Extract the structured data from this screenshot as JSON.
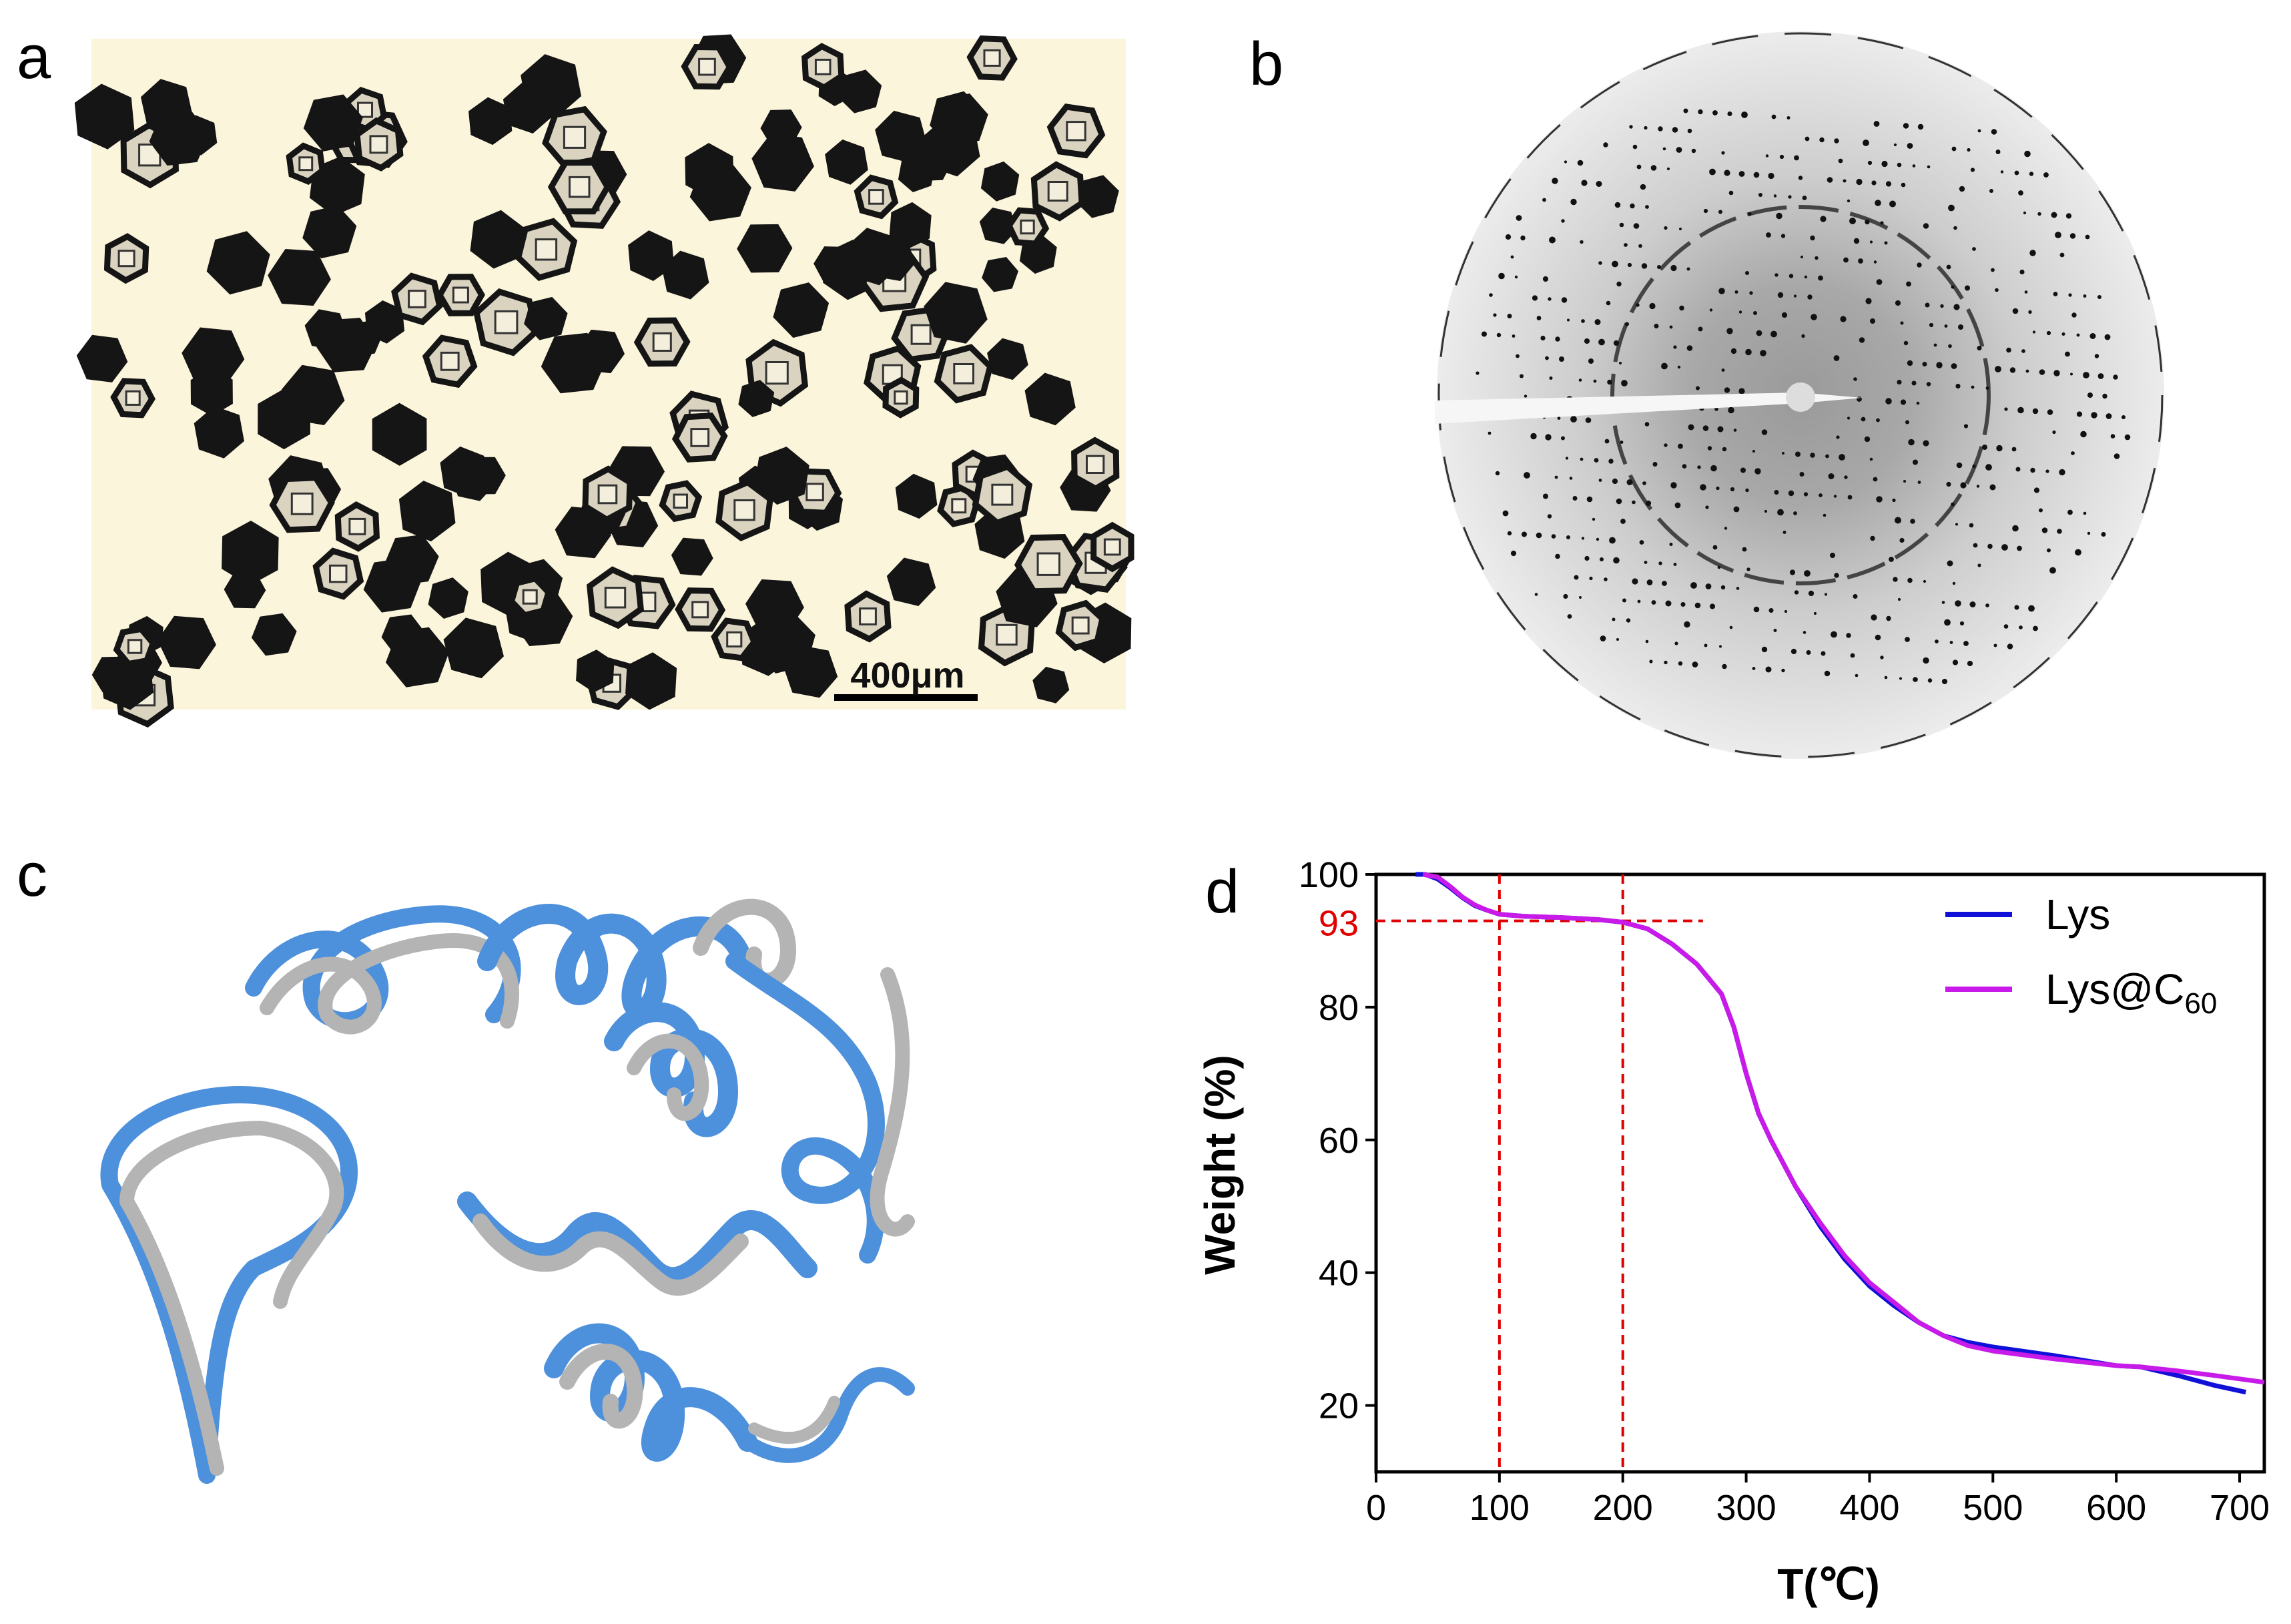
{
  "panels": {
    "a": {
      "letter": "a",
      "scale_bar_label": "400μm",
      "background_color": "#fbf5dc",
      "crystal_color": "#151515"
    },
    "b": {
      "letter": "b",
      "background_color": "#e6e6e6",
      "spot_color": "#111111"
    },
    "c": {
      "letter": "c",
      "ribbon_colors": [
        "#4d90dc",
        "#b4b4b4"
      ]
    },
    "d": {
      "letter": "d"
    }
  },
  "chart_data": {
    "type": "line",
    "xlabel": "T(℃)",
    "ylabel": "Weight (%)",
    "xlim": [
      0,
      720
    ],
    "ylim": [
      10,
      100
    ],
    "xticks": [
      0,
      100,
      200,
      300,
      400,
      500,
      600,
      700
    ],
    "yticks": [
      20,
      40,
      60,
      80,
      100
    ],
    "grid": false,
    "legend_position": "top-right",
    "series": [
      {
        "name": "Lys",
        "color": "#1010d8",
        "points": [
          [
            32,
            100
          ],
          [
            40,
            100
          ],
          [
            50,
            99.3
          ],
          [
            60,
            98
          ],
          [
            70,
            96.5
          ],
          [
            80,
            95.3
          ],
          [
            90,
            94.6
          ],
          [
            100,
            94
          ],
          [
            120,
            93.7
          ],
          [
            150,
            93.5
          ],
          [
            180,
            93.2
          ],
          [
            200,
            92.8
          ],
          [
            220,
            91.8
          ],
          [
            240,
            89.5
          ],
          [
            260,
            86.5
          ],
          [
            280,
            82
          ],
          [
            290,
            77
          ],
          [
            300,
            70
          ],
          [
            310,
            64
          ],
          [
            320,
            60
          ],
          [
            340,
            53
          ],
          [
            360,
            47
          ],
          [
            380,
            42
          ],
          [
            400,
            38
          ],
          [
            420,
            35
          ],
          [
            440,
            32.5
          ],
          [
            460,
            30.5
          ],
          [
            480,
            29.5
          ],
          [
            500,
            28.8
          ],
          [
            550,
            27.5
          ],
          [
            600,
            26
          ],
          [
            620,
            25.8
          ],
          [
            650,
            24.5
          ],
          [
            680,
            23
          ],
          [
            705,
            22
          ]
        ]
      },
      {
        "name_main": "Lys@C",
        "name_sub": "60",
        "color": "#c81ae8",
        "points": [
          [
            38,
            100
          ],
          [
            50,
            99.6
          ],
          [
            60,
            98.2
          ],
          [
            70,
            96.6
          ],
          [
            80,
            95.4
          ],
          [
            90,
            94.6
          ],
          [
            100,
            94
          ],
          [
            120,
            93.7
          ],
          [
            150,
            93.5
          ],
          [
            180,
            93.2
          ],
          [
            200,
            92.8
          ],
          [
            220,
            91.8
          ],
          [
            240,
            89.5
          ],
          [
            260,
            86.5
          ],
          [
            280,
            82
          ],
          [
            290,
            77
          ],
          [
            300,
            70
          ],
          [
            310,
            64
          ],
          [
            320,
            60
          ],
          [
            340,
            53
          ],
          [
            360,
            47.5
          ],
          [
            380,
            42.5
          ],
          [
            400,
            38.5
          ],
          [
            420,
            35.5
          ],
          [
            440,
            32.5
          ],
          [
            460,
            30.5
          ],
          [
            480,
            29
          ],
          [
            500,
            28.2
          ],
          [
            550,
            27
          ],
          [
            600,
            26
          ],
          [
            620,
            25.8
          ],
          [
            650,
            25.2
          ],
          [
            680,
            24.5
          ],
          [
            720,
            23.5
          ]
        ]
      }
    ],
    "annotations": {
      "hline": {
        "y": 93,
        "x_end": 265,
        "label": "93",
        "color": "#e00000"
      },
      "vlines": [
        100,
        200
      ]
    }
  }
}
